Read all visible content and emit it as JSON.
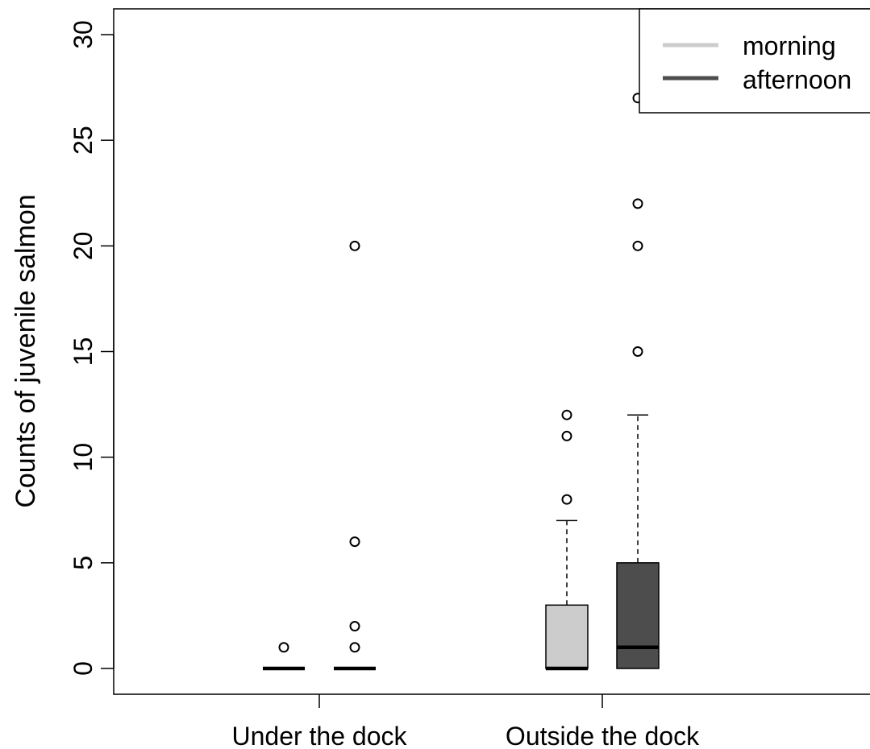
{
  "chart_data": {
    "type": "boxplot",
    "title": "",
    "xlabel": "",
    "ylabel": "Counts of juvenile salmon",
    "ylim": [
      0,
      30
    ],
    "yticks": [
      0,
      5,
      10,
      15,
      20,
      25,
      30
    ],
    "categories": [
      "Under the dock",
      "Outside the dock"
    ],
    "legend_position": "top-right",
    "grid": false,
    "series": [
      {
        "name": "morning",
        "color": "#cccccc",
        "boxes": [
          {
            "category": "Under the dock",
            "lower_whisker": 0,
            "q1": 0,
            "median": 0,
            "q3": 0,
            "upper_whisker": 0,
            "outliers": [
              1
            ]
          },
          {
            "category": "Outside the dock",
            "lower_whisker": 0,
            "q1": 0,
            "median": 0,
            "q3": 3,
            "upper_whisker": 7,
            "outliers": [
              8,
              11,
              12
            ]
          }
        ]
      },
      {
        "name": "afternoon",
        "color": "#4d4d4d",
        "boxes": [
          {
            "category": "Under the dock",
            "lower_whisker": 0,
            "q1": 0,
            "median": 0,
            "q3": 0,
            "upper_whisker": 0,
            "outliers": [
              1,
              2,
              6,
              20
            ]
          },
          {
            "category": "Outside the dock",
            "lower_whisker": 0,
            "q1": 0,
            "median": 1,
            "q3": 5,
            "upper_whisker": 12,
            "outliers": [
              15,
              20,
              22,
              27
            ]
          }
        ]
      }
    ]
  }
}
